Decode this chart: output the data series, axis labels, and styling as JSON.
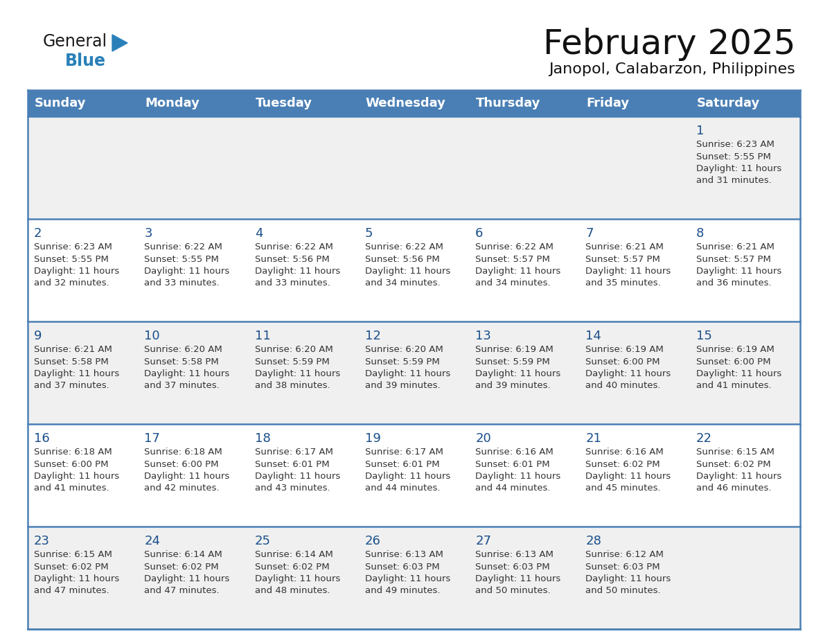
{
  "title": "February 2025",
  "subtitle": "Janopol, Calabarzon, Philippines",
  "header_bg": "#4a7fb5",
  "header_text_color": "#ffffff",
  "days_of_week": [
    "Sunday",
    "Monday",
    "Tuesday",
    "Wednesday",
    "Thursday",
    "Friday",
    "Saturday"
  ],
  "row_bg_odd": "#f0f0f0",
  "row_bg_even": "#ffffff",
  "cell_text_color": "#333333",
  "day_num_color": "#1a4f8a",
  "border_color": "#4a7fb5",
  "title_color": "#111111",
  "subtitle_color": "#111111",
  "calendar_data": [
    [
      null,
      null,
      null,
      null,
      null,
      null,
      {
        "day": "1",
        "sunrise": "6:23 AM",
        "sunset": "5:55 PM",
        "daylight": "11 hours and 31 minutes."
      }
    ],
    [
      {
        "day": "2",
        "sunrise": "6:23 AM",
        "sunset": "5:55 PM",
        "daylight": "11 hours and 32 minutes."
      },
      {
        "day": "3",
        "sunrise": "6:22 AM",
        "sunset": "5:55 PM",
        "daylight": "11 hours and 33 minutes."
      },
      {
        "day": "4",
        "sunrise": "6:22 AM",
        "sunset": "5:56 PM",
        "daylight": "11 hours and 33 minutes."
      },
      {
        "day": "5",
        "sunrise": "6:22 AM",
        "sunset": "5:56 PM",
        "daylight": "11 hours and 34 minutes."
      },
      {
        "day": "6",
        "sunrise": "6:22 AM",
        "sunset": "5:57 PM",
        "daylight": "11 hours and 34 minutes."
      },
      {
        "day": "7",
        "sunrise": "6:21 AM",
        "sunset": "5:57 PM",
        "daylight": "11 hours and 35 minutes."
      },
      {
        "day": "8",
        "sunrise": "6:21 AM",
        "sunset": "5:57 PM",
        "daylight": "11 hours and 36 minutes."
      }
    ],
    [
      {
        "day": "9",
        "sunrise": "6:21 AM",
        "sunset": "5:58 PM",
        "daylight": "11 hours and 37 minutes."
      },
      {
        "day": "10",
        "sunrise": "6:20 AM",
        "sunset": "5:58 PM",
        "daylight": "11 hours and 37 minutes."
      },
      {
        "day": "11",
        "sunrise": "6:20 AM",
        "sunset": "5:59 PM",
        "daylight": "11 hours and 38 minutes."
      },
      {
        "day": "12",
        "sunrise": "6:20 AM",
        "sunset": "5:59 PM",
        "daylight": "11 hours and 39 minutes."
      },
      {
        "day": "13",
        "sunrise": "6:19 AM",
        "sunset": "5:59 PM",
        "daylight": "11 hours and 39 minutes."
      },
      {
        "day": "14",
        "sunrise": "6:19 AM",
        "sunset": "6:00 PM",
        "daylight": "11 hours and 40 minutes."
      },
      {
        "day": "15",
        "sunrise": "6:19 AM",
        "sunset": "6:00 PM",
        "daylight": "11 hours and 41 minutes."
      }
    ],
    [
      {
        "day": "16",
        "sunrise": "6:18 AM",
        "sunset": "6:00 PM",
        "daylight": "11 hours and 41 minutes."
      },
      {
        "day": "17",
        "sunrise": "6:18 AM",
        "sunset": "6:00 PM",
        "daylight": "11 hours and 42 minutes."
      },
      {
        "day": "18",
        "sunrise": "6:17 AM",
        "sunset": "6:01 PM",
        "daylight": "11 hours and 43 minutes."
      },
      {
        "day": "19",
        "sunrise": "6:17 AM",
        "sunset": "6:01 PM",
        "daylight": "11 hours and 44 minutes."
      },
      {
        "day": "20",
        "sunrise": "6:16 AM",
        "sunset": "6:01 PM",
        "daylight": "11 hours and 44 minutes."
      },
      {
        "day": "21",
        "sunrise": "6:16 AM",
        "sunset": "6:02 PM",
        "daylight": "11 hours and 45 minutes."
      },
      {
        "day": "22",
        "sunrise": "6:15 AM",
        "sunset": "6:02 PM",
        "daylight": "11 hours and 46 minutes."
      }
    ],
    [
      {
        "day": "23",
        "sunrise": "6:15 AM",
        "sunset": "6:02 PM",
        "daylight": "11 hours and 47 minutes."
      },
      {
        "day": "24",
        "sunrise": "6:14 AM",
        "sunset": "6:02 PM",
        "daylight": "11 hours and 47 minutes."
      },
      {
        "day": "25",
        "sunrise": "6:14 AM",
        "sunset": "6:02 PM",
        "daylight": "11 hours and 48 minutes."
      },
      {
        "day": "26",
        "sunrise": "6:13 AM",
        "sunset": "6:03 PM",
        "daylight": "11 hours and 49 minutes."
      },
      {
        "day": "27",
        "sunrise": "6:13 AM",
        "sunset": "6:03 PM",
        "daylight": "11 hours and 50 minutes."
      },
      {
        "day": "28",
        "sunrise": "6:12 AM",
        "sunset": "6:03 PM",
        "daylight": "11 hours and 50 minutes."
      },
      null
    ]
  ],
  "logo_text1": "General",
  "logo_text2": "Blue",
  "logo_color1": "#1a1a1a",
  "logo_color2": "#2980b9",
  "logo_triangle_color": "#2980b9",
  "title_fontsize": 36,
  "subtitle_fontsize": 16,
  "header_fontsize": 13,
  "day_num_fontsize": 13,
  "cell_fontsize": 9.5
}
